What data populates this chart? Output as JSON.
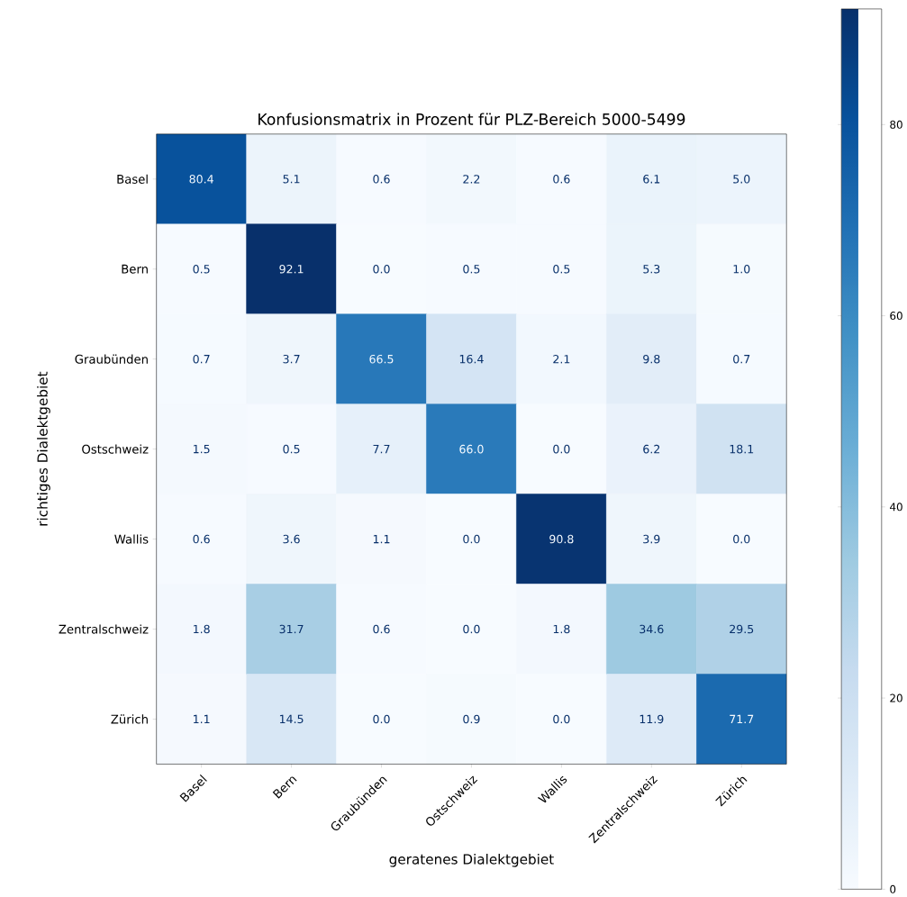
{
  "chart_data": {
    "type": "heatmap",
    "title": "Konfusionsmatrix in Prozent für PLZ-Bereich 5000-5499",
    "xlabel": "geratenes Dialektgebiet",
    "ylabel": "richtiges Dialektgebiet",
    "categories": [
      "Basel",
      "Bern",
      "Graubünden",
      "Ostschweiz",
      "Wallis",
      "Zentralschweiz",
      "Zürich"
    ],
    "y_categories": [
      "Basel",
      "Bern",
      "Graubünden",
      "Ostschweiz",
      "Wallis",
      "Zentralschweiz",
      "Zürich"
    ],
    "cells": [
      [
        80.4,
        5.1,
        0.6,
        2.2,
        0.6,
        6.1,
        5.0
      ],
      [
        0.5,
        92.1,
        0.0,
        0.5,
        0.5,
        5.3,
        1.0
      ],
      [
        0.7,
        3.7,
        66.5,
        16.4,
        2.1,
        9.8,
        0.7
      ],
      [
        1.5,
        0.5,
        7.7,
        66.0,
        0.0,
        6.2,
        18.1
      ],
      [
        0.6,
        3.6,
        1.1,
        0.0,
        90.8,
        3.9,
        0.0
      ],
      [
        1.8,
        31.7,
        0.6,
        0.0,
        1.8,
        34.6,
        29.5
      ],
      [
        1.1,
        14.5,
        0.0,
        0.9,
        0.0,
        11.9,
        71.7
      ]
    ],
    "cell_labels": [
      [
        "80.4",
        "5.1",
        "0.6",
        "2.2",
        "0.6",
        "6.1",
        "5.0"
      ],
      [
        "0.5",
        "92.1",
        "0.0",
        "0.5",
        "0.5",
        "5.3",
        "1.0"
      ],
      [
        "0.7",
        "3.7",
        "66.5",
        "16.4",
        "2.1",
        "9.8",
        "0.7"
      ],
      [
        "1.5",
        "0.5",
        "7.7",
        "66.0",
        "0.0",
        "6.2",
        "18.1"
      ],
      [
        "0.6",
        "3.6",
        "1.1",
        "0.0",
        "90.8",
        "3.9",
        "0.0"
      ],
      [
        "1.8",
        "31.7",
        "0.6",
        "0.0",
        "1.8",
        "34.6",
        "29.5"
      ],
      [
        "1.1",
        "14.5",
        "0.0",
        "0.9",
        "0.0",
        "11.9",
        "71.7"
      ]
    ],
    "clim": [
      0,
      92.1
    ],
    "cticks": [
      0,
      20,
      40,
      60,
      80
    ]
  }
}
